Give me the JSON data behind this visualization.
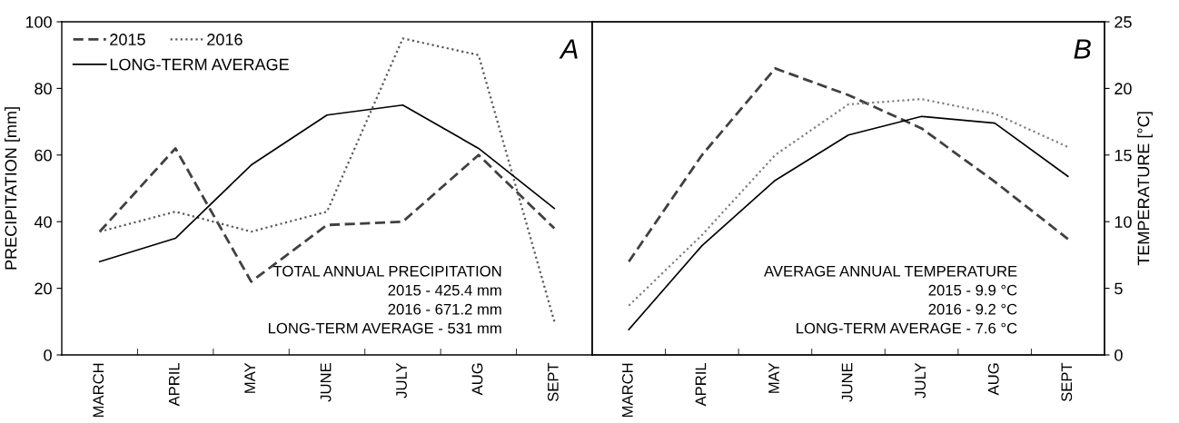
{
  "chart_data": [
    {
      "type": "line",
      "categories": [
        "MARCH",
        "APRIL",
        "MAY",
        "JUNE",
        "JULY",
        "AUG",
        "SEPT"
      ],
      "ylabel": "PRECIPITATION [mm]",
      "ylim": [
        0,
        100
      ],
      "yticks": [
        0,
        20,
        40,
        60,
        80,
        100
      ],
      "legend": "top left",
      "grid": false,
      "series": [
        {
          "name": "2015",
          "color": "#404040",
          "line_style": "dashed",
          "values": [
            37,
            62,
            22,
            39,
            40,
            60,
            38
          ]
        },
        {
          "name": "2016",
          "color": "#595959",
          "line_style": "dotted",
          "values": [
            37,
            43,
            37,
            43,
            95,
            90,
            10
          ]
        },
        {
          "name": "LONG-TERM AVERAGE",
          "color": "#000000",
          "line_style": "solid",
          "values": [
            28,
            35,
            57,
            72,
            75,
            62,
            44
          ]
        }
      ],
      "annotations": [
        "A",
        "TOTAL ANNUAL PRECIPITATION\n2015 - 425.4 mm\n2016 - 671.2 mm\nLONG-TERM AVERAGE - 531 mm"
      ]
    },
    {
      "type": "line",
      "categories": [
        "MARCH",
        "APRIL",
        "MAY",
        "JUNE",
        "JULY",
        "AUG",
        "SEPT"
      ],
      "y2label": "TEMPERATURE [°C]",
      "y2lim": [
        0,
        25
      ],
      "y2ticks": [
        0,
        5,
        10,
        15,
        20,
        25
      ],
      "grid": false,
      "series": [
        {
          "color": "#404040",
          "line_style": "dashed",
          "axis": "y2",
          "values": [
            7,
            15,
            21.5,
            19.5,
            17,
            13,
            8.7
          ]
        },
        {
          "color": "#808080",
          "line_style": "dotted",
          "axis": "y2",
          "values": [
            3.7,
            9,
            15,
            18.8,
            19.2,
            18.1,
            15.6
          ]
        },
        {
          "color": "#000000",
          "line_style": "solid",
          "axis": "y2",
          "values": [
            1.9,
            8.2,
            13.1,
            16.5,
            17.9,
            17.4,
            13.4
          ]
        }
      ],
      "annotations": [
        "B",
        "AVERAGE ANNUAL TEMPERATURE\n2015 - 9.9 °C\n2016 - 9.2 °C\nLONG-TERM AVERAGE - 7.6 °C"
      ]
    }
  ]
}
